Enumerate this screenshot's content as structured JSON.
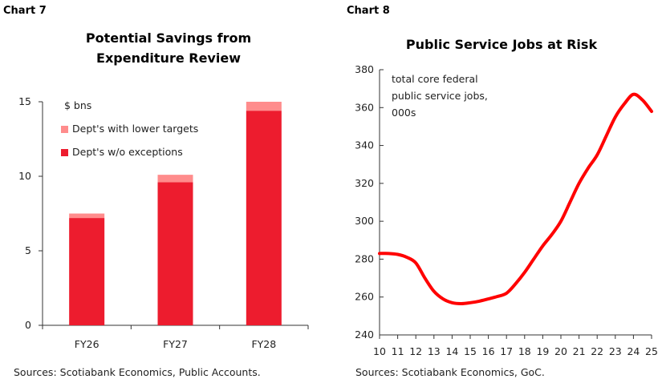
{
  "chart_data": [
    {
      "label": "Chart 7",
      "type": "bar",
      "stacked": true,
      "title": "Potential Savings from Expenditure Review",
      "unit_label": "$ bns",
      "categories": [
        "FY26",
        "FY27",
        "FY28"
      ],
      "series": [
        {
          "name": "Dept's w/o exceptions",
          "color": "#ED1C2E",
          "values": [
            7.2,
            9.6,
            14.4
          ]
        },
        {
          "name": "Dept's with lower targets",
          "color": "#FF8C8C",
          "values": [
            0.3,
            0.5,
            0.6
          ]
        }
      ],
      "ylim": [
        0,
        15
      ],
      "yticks": [
        0,
        5,
        10,
        15
      ],
      "legend_placement": "top-left",
      "grid": false,
      "source": "Sources: Scotiabank Economics, Public Accounts."
    },
    {
      "label": "Chart 8",
      "type": "line",
      "title": "Public Service Jobs at Risk",
      "annotation": [
        "total core federal",
        "public service jobs,",
        "000s"
      ],
      "x": [
        10,
        10.5,
        11,
        11.5,
        12,
        12.5,
        13,
        13.5,
        14,
        14.5,
        15,
        15.5,
        16,
        16.5,
        17,
        17.5,
        18,
        18.5,
        19,
        19.5,
        20,
        20.5,
        21,
        21.5,
        22,
        22.5,
        23,
        23.5,
        24,
        24.5,
        25
      ],
      "series": [
        {
          "color": "#FF0000",
          "values": [
            283,
            283,
            282.5,
            281,
            278,
            270,
            263,
            259,
            257,
            256.5,
            257,
            257.8,
            259,
            260.3,
            262,
            267,
            273,
            280,
            287,
            293,
            300,
            310,
            320,
            328,
            335,
            345,
            355,
            362,
            367,
            364,
            358
          ]
        }
      ],
      "xticks": [
        "10",
        "11",
        "12",
        "13",
        "14",
        "15",
        "16",
        "17",
        "18",
        "19",
        "20",
        "21",
        "22",
        "23",
        "24",
        "25"
      ],
      "ylim": [
        240,
        380
      ],
      "yticks": [
        240,
        260,
        280,
        300,
        320,
        340,
        360,
        380
      ],
      "grid": false,
      "source": "Sources: Scotiabank Economics, GoC."
    }
  ]
}
